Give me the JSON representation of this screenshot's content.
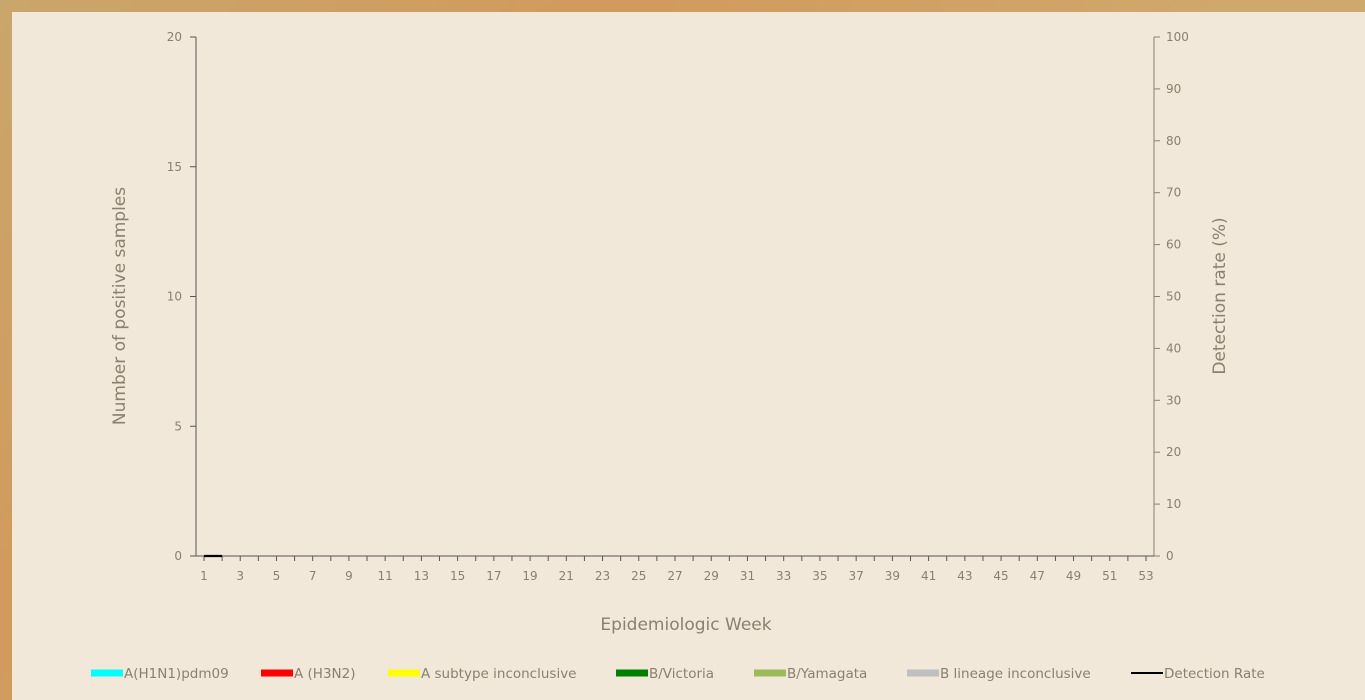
{
  "chart_data": {
    "type": "bar",
    "x_label": "Epidemiologic Week",
    "y_left_label": "Number of positive samples",
    "y_right_label": "Detection rate (%)",
    "y_left_range": [
      0,
      20
    ],
    "y_left_ticks": [
      "0",
      "5",
      "10",
      "15",
      "20"
    ],
    "y_right_range": [
      0,
      100
    ],
    "y_right_ticks": [
      "0",
      "10",
      "20",
      "30",
      "40",
      "50",
      "60",
      "70",
      "80",
      "90",
      "100"
    ],
    "x_ticks": [
      "1",
      "3",
      "5",
      "7",
      "9",
      "11",
      "13",
      "15",
      "17",
      "19",
      "21",
      "23",
      "25",
      "27",
      "29",
      "31",
      "33",
      "35",
      "37",
      "39",
      "41",
      "43",
      "45",
      "47",
      "49",
      "51",
      "53"
    ],
    "weeks": [
      1,
      2
    ],
    "series": [
      {
        "name": "A(H1N1)pdm09",
        "kind": "bar",
        "color": "#00ffff",
        "values": [
          0,
          0
        ]
      },
      {
        "name": "A (H3N2)",
        "kind": "bar",
        "color": "#ff0000",
        "values": [
          0,
          0
        ]
      },
      {
        "name": "A subtype inconclusive",
        "kind": "bar",
        "color": "#ffff00",
        "values": [
          0,
          0
        ]
      },
      {
        "name": "B/Victoria",
        "kind": "bar",
        "color": "#008000",
        "values": [
          0,
          0
        ]
      },
      {
        "name": "B/Yamagata",
        "kind": "bar",
        "color": "#9bbb59",
        "values": [
          0,
          0
        ]
      },
      {
        "name": "B lineage inconclusive",
        "kind": "bar",
        "color": "#bfbfbf",
        "values": [
          0,
          0
        ]
      },
      {
        "name": "Detection Rate",
        "kind": "line",
        "axis": "right",
        "color": "#000000",
        "values": [
          0,
          0
        ]
      }
    ],
    "grid": false,
    "legend_position": "bottom"
  }
}
